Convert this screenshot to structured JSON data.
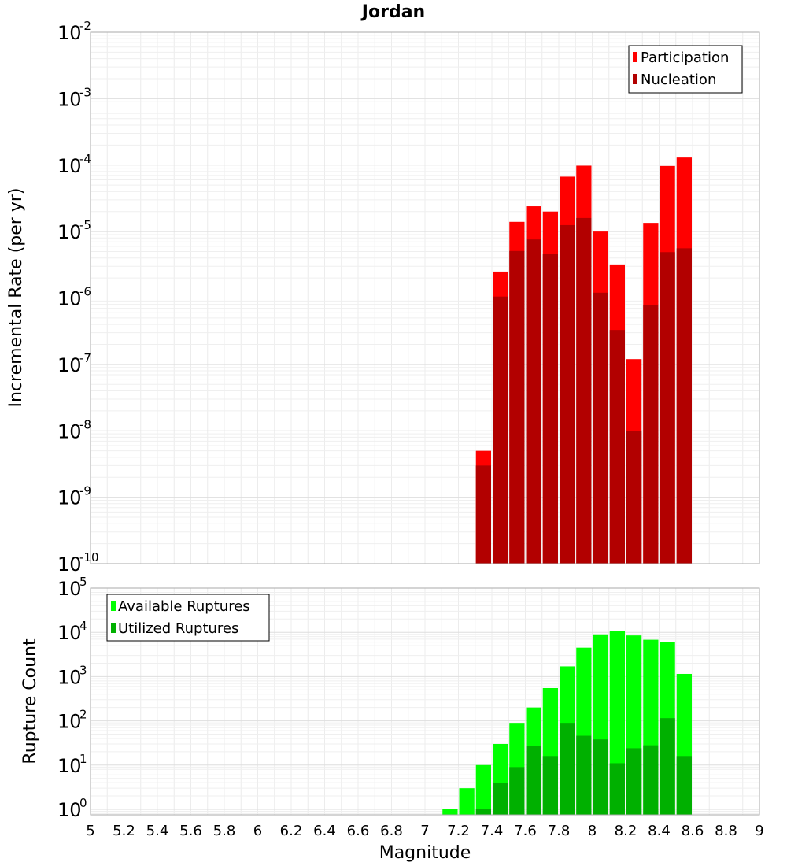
{
  "chart_data": [
    {
      "type": "bar",
      "title": "Jordan",
      "xlabel": "",
      "ylabel": "Incremental Rate (per yr)",
      "yscale": "log",
      "ylim": [
        1e-10,
        0.01
      ],
      "xlim": [
        5,
        9
      ],
      "bar_width": 0.1,
      "legend_position": "top-right",
      "y_tick_exponents": [
        "-2",
        "-3",
        "-4",
        "-5",
        "-6",
        "-7",
        "-8",
        "-9",
        "-10"
      ],
      "y_tick_base": "10",
      "series": [
        {
          "name": "Participation",
          "color": "#ff0000",
          "x": [
            7.3,
            7.4,
            7.5,
            7.6,
            7.7,
            7.8,
            7.9,
            8.0,
            8.1,
            8.2,
            8.3,
            8.4,
            8.5
          ],
          "values": [
            5e-09,
            2.5e-06,
            1.4e-05,
            2.4e-05,
            2e-05,
            6.7e-05,
            9.8e-05,
            1e-05,
            3.2e-06,
            1.2e-07,
            1.35e-05,
            9.7e-05,
            0.00013
          ]
        },
        {
          "name": "Nucleation",
          "color": "#b20000",
          "x": [
            7.3,
            7.4,
            7.5,
            7.6,
            7.7,
            7.8,
            7.9,
            8.0,
            8.1,
            8.2,
            8.3,
            8.4,
            8.5
          ],
          "values": [
            3e-09,
            1.05e-06,
            5.1e-06,
            7.6e-06,
            4.6e-06,
            1.25e-05,
            1.6e-05,
            1.2e-06,
            3.3e-07,
            1e-08,
            7.8e-07,
            4.9e-06,
            5.6e-06
          ]
        }
      ]
    },
    {
      "type": "bar",
      "title": "",
      "xlabel": "Magnitude",
      "ylabel": "Rupture Count",
      "yscale": "log",
      "ylim": [
        0.75,
        100000.0
      ],
      "xlim": [
        5,
        9
      ],
      "bar_width": 0.1,
      "legend_position": "top-left",
      "x_tick_labels": [
        "5",
        "5.2",
        "5.4",
        "5.6",
        "5.8",
        "6",
        "6.2",
        "6.4",
        "6.6",
        "6.8",
        "7",
        "7.2",
        "7.4",
        "7.6",
        "7.8",
        "8",
        "8.2",
        "8.4",
        "8.6",
        "8.8",
        "9"
      ],
      "y_tick_exponents": [
        "5",
        "4",
        "3",
        "2",
        "1",
        "0"
      ],
      "y_tick_base": "10",
      "series": [
        {
          "name": "Available Ruptures",
          "color": "#00ff00",
          "x": [
            7.1,
            7.2,
            7.3,
            7.4,
            7.5,
            7.6,
            7.7,
            7.8,
            7.9,
            8.0,
            8.1,
            8.2,
            8.3,
            8.4,
            8.5
          ],
          "values": [
            1,
            3,
            10,
            30,
            90,
            200,
            550,
            1700,
            4500,
            9000,
            10500,
            8500,
            6800,
            6000,
            1150
          ]
        },
        {
          "name": "Utilized Ruptures",
          "color": "#00b000",
          "x": [
            7.3,
            7.4,
            7.5,
            7.6,
            7.7,
            7.8,
            7.9,
            8.0,
            8.1,
            8.2,
            8.3,
            8.4,
            8.5
          ],
          "values": [
            1,
            4,
            9,
            27,
            16,
            90,
            46,
            38,
            11,
            24,
            28,
            115,
            16
          ]
        }
      ]
    }
  ]
}
